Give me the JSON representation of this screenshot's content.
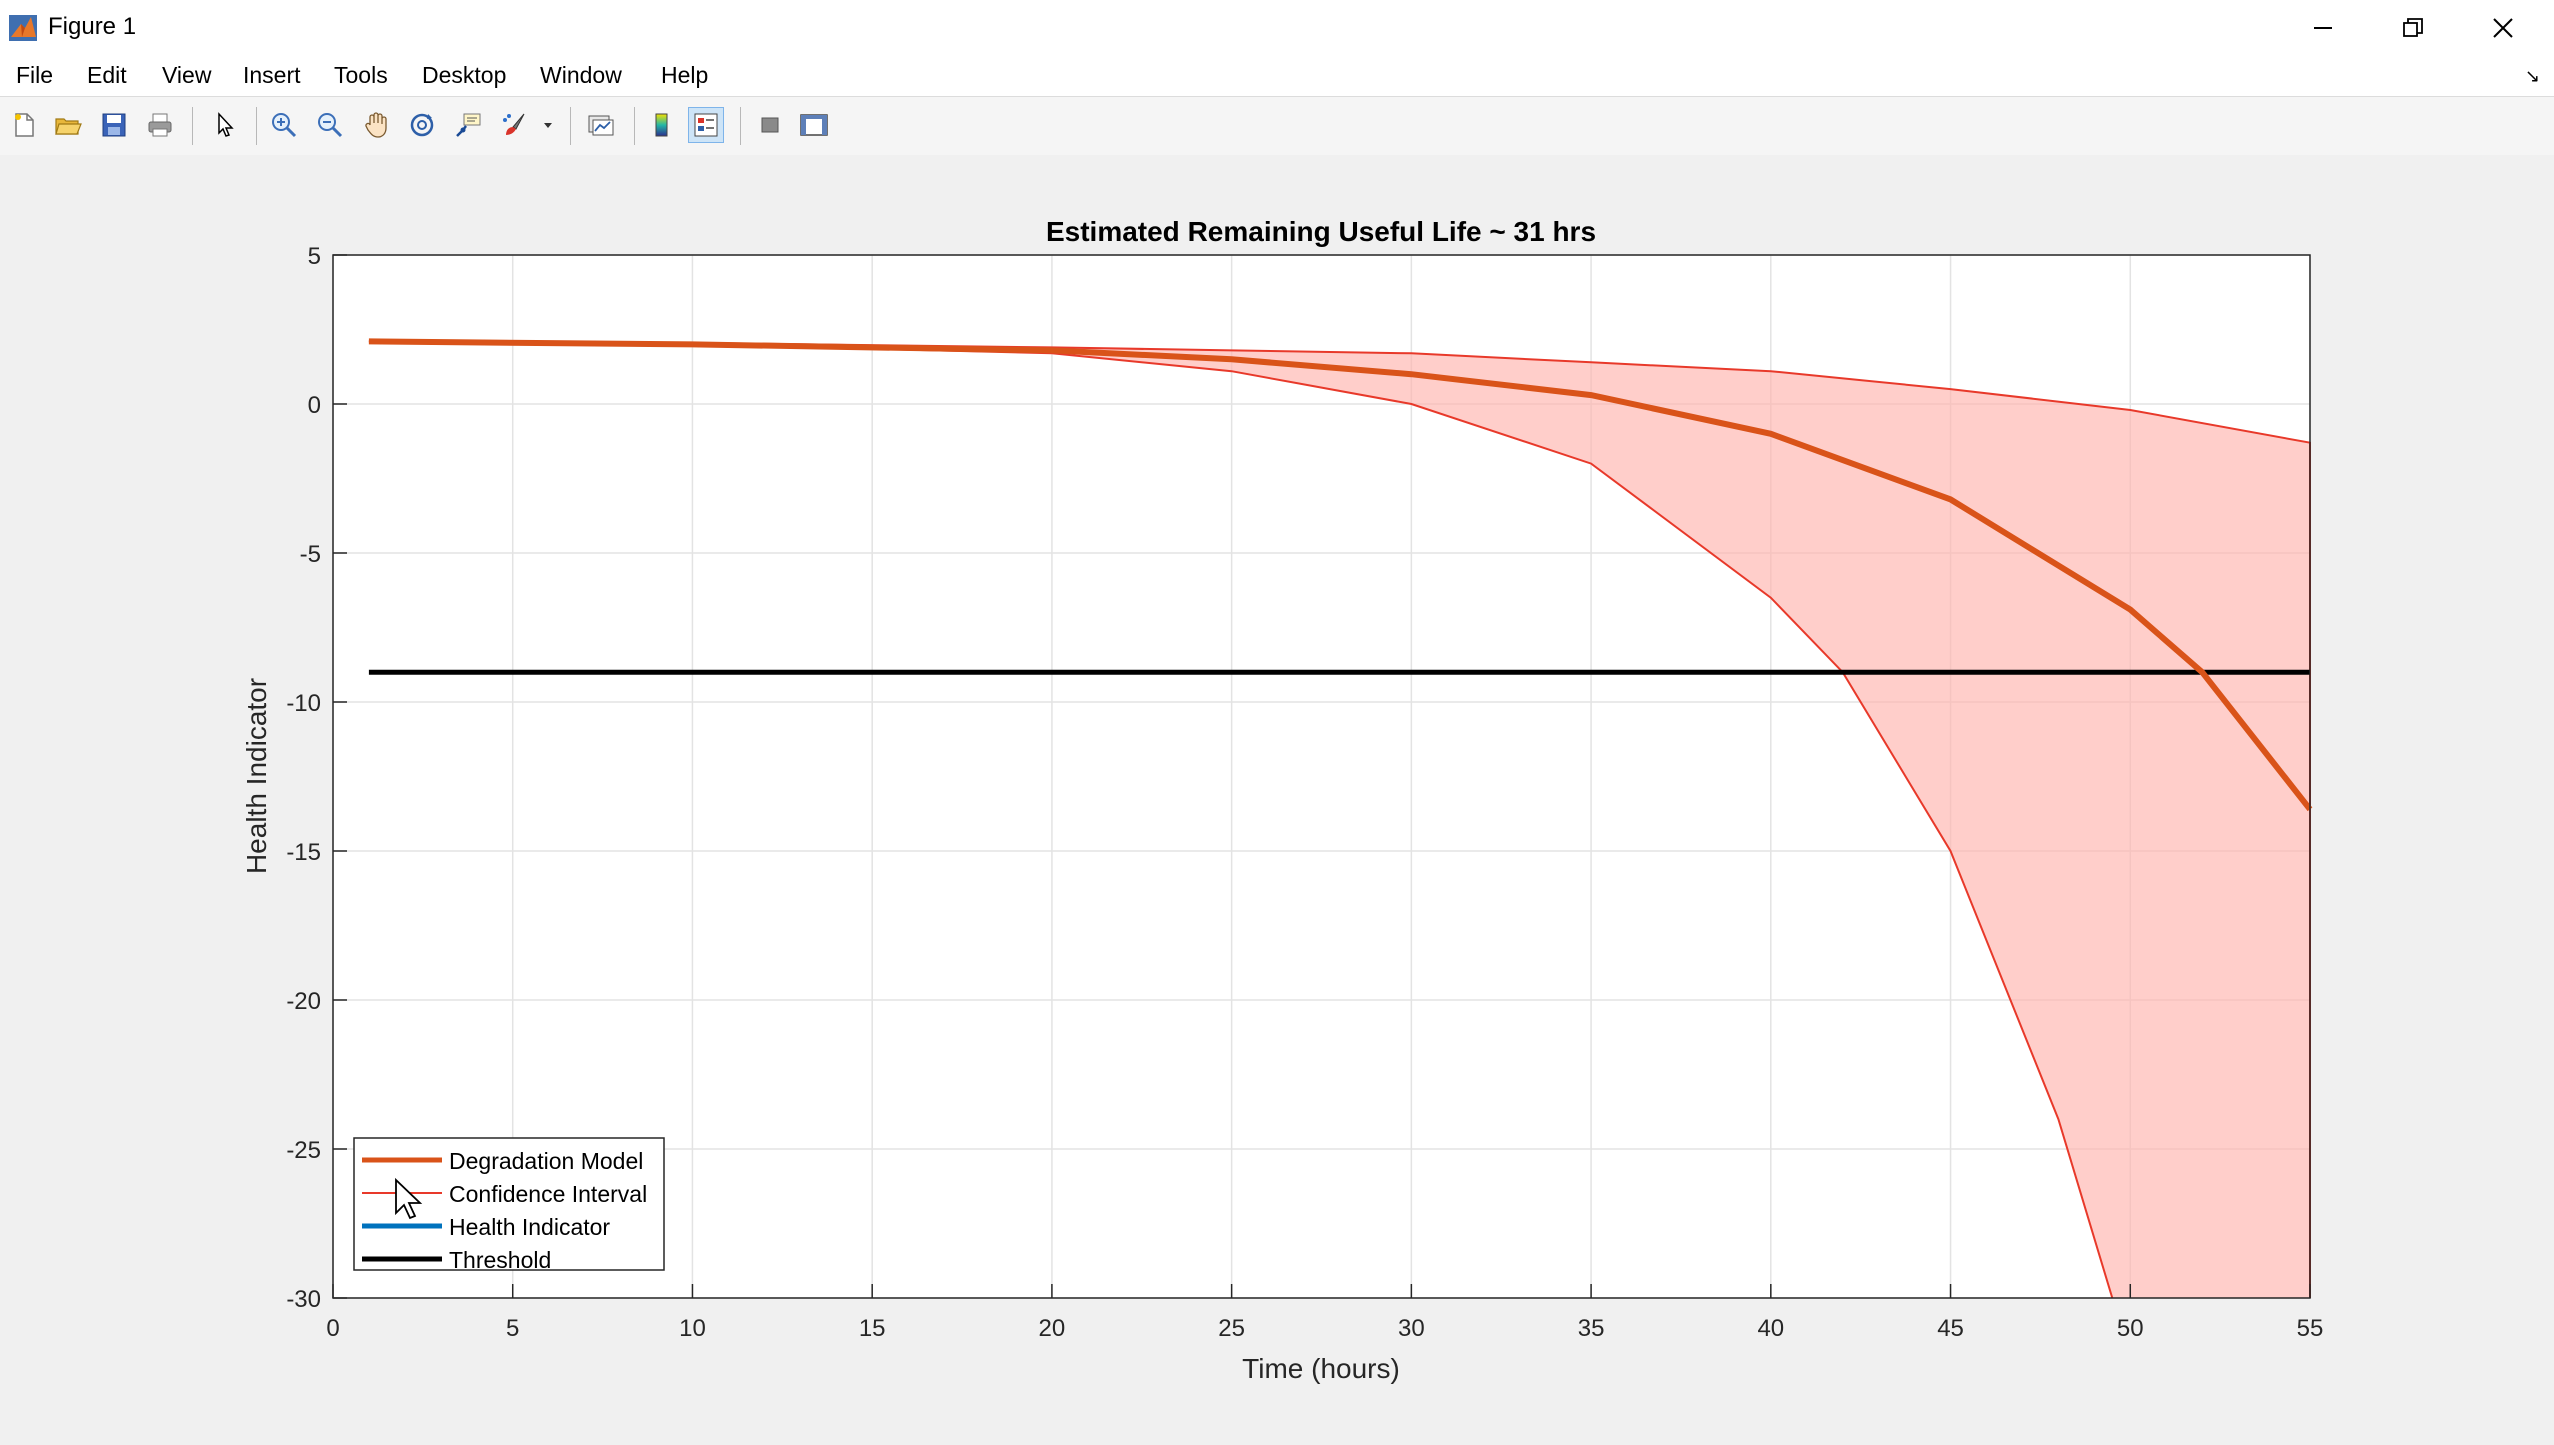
{
  "window": {
    "title": "Figure 1",
    "controls": {
      "minimize": "minimize-icon",
      "restore": "restore-icon",
      "close": "close-icon"
    }
  },
  "menubar": {
    "items": [
      "File",
      "Edit",
      "View",
      "Insert",
      "Tools",
      "Desktop",
      "Window",
      "Help"
    ]
  },
  "toolbar": {
    "buttons": [
      "new-figure-icon",
      "open-file-icon",
      "save-icon",
      "print-icon",
      "edit-plot-arrow-icon",
      "zoom-in-icon",
      "zoom-out-icon",
      "pan-hand-icon",
      "rotate-3d-icon",
      "data-cursor-icon",
      "brush-icon",
      "brush-dropdown-icon",
      "link-plot-icon",
      "colorbar-icon",
      "legend-icon",
      "hide-plot-tools-icon",
      "show-plot-tools-icon"
    ],
    "active": "legend-icon"
  },
  "chart_data": {
    "type": "line",
    "title": "Estimated Remaining Useful Life ~ 31 hrs",
    "xlabel": "Time (hours)",
    "ylabel": "Health Indicator",
    "xlim": [
      0,
      55
    ],
    "ylim": [
      -30,
      5
    ],
    "xticks": [
      0,
      5,
      10,
      15,
      20,
      25,
      30,
      35,
      40,
      45,
      50,
      55
    ],
    "yticks": [
      5,
      0,
      -5,
      -10,
      -15,
      -20,
      -25,
      -30
    ],
    "grid": true,
    "legend_location": "bottom-left",
    "series": [
      {
        "name": "Degradation Model",
        "color": "#d95319",
        "x": [
          1,
          10,
          20,
          25,
          30,
          35,
          40,
          45,
          50,
          52,
          55
        ],
        "y": [
          2.1,
          2.0,
          1.8,
          1.5,
          1.0,
          0.3,
          -1.0,
          -3.2,
          -6.9,
          -9.0,
          -13.6
        ]
      },
      {
        "name": "Confidence Interval",
        "color": "#e8392a",
        "fill": "#ffb3ad",
        "upper": {
          "x": [
            1,
            10,
            20,
            25,
            30,
            35,
            40,
            45,
            50,
            55
          ],
          "y": [
            2.1,
            2.05,
            1.9,
            1.8,
            1.7,
            1.4,
            1.1,
            0.5,
            -0.2,
            -1.3
          ]
        },
        "lower": {
          "x": [
            1,
            10,
            20,
            25,
            30,
            35,
            40,
            42,
            45,
            48,
            49.5
          ],
          "y": [
            2.1,
            2.0,
            1.7,
            1.1,
            0.0,
            -2.0,
            -6.5,
            -9.0,
            -15.0,
            -24.0,
            -30.0
          ]
        }
      },
      {
        "name": "Health Indicator",
        "color": "#0072bd",
        "x": [],
        "y": []
      },
      {
        "name": "Threshold",
        "color": "#000000",
        "x": [
          1,
          55
        ],
        "y": [
          -9,
          -9
        ]
      }
    ]
  }
}
